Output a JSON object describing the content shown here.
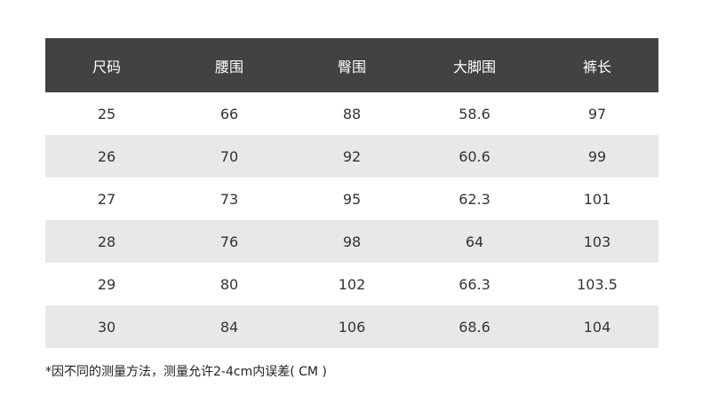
{
  "table": {
    "headers": [
      "尺码",
      "腰围",
      "臀围",
      "大脚围",
      "裤长"
    ],
    "rows": [
      [
        "25",
        "66",
        "88",
        "58.6",
        "97"
      ],
      [
        "26",
        "70",
        "92",
        "60.6",
        "99"
      ],
      [
        "27",
        "73",
        "95",
        "62.3",
        "101"
      ],
      [
        "28",
        "76",
        "98",
        "64",
        "103"
      ],
      [
        "29",
        "80",
        "102",
        "66.3",
        "103.5"
      ],
      [
        "30",
        "84",
        "106",
        "68.6",
        "104"
      ]
    ]
  },
  "note": "*因不同的测量方法，测量允许2-4cm内误差( CM )",
  "colors": {
    "header_bg": "#424242",
    "alt_row_bg": "#e8e8e8"
  }
}
